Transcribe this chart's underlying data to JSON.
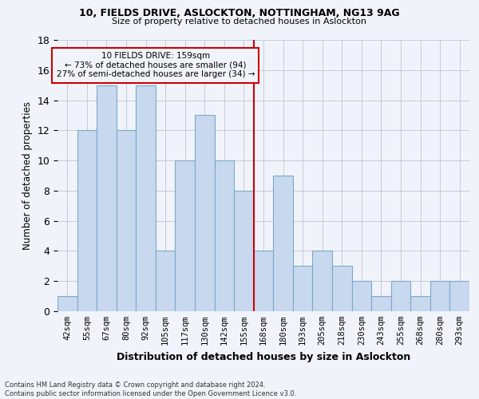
{
  "title1": "10, FIELDS DRIVE, ASLOCKTON, NOTTINGHAM, NG13 9AG",
  "title2": "Size of property relative to detached houses in Aslockton",
  "xlabel": "Distribution of detached houses by size in Aslockton",
  "ylabel": "Number of detached properties",
  "categories": [
    "42sqm",
    "55sqm",
    "67sqm",
    "80sqm",
    "92sqm",
    "105sqm",
    "117sqm",
    "130sqm",
    "142sqm",
    "155sqm",
    "168sqm",
    "180sqm",
    "193sqm",
    "205sqm",
    "218sqm",
    "230sqm",
    "243sqm",
    "255sqm",
    "268sqm",
    "280sqm",
    "293sqm"
  ],
  "values": [
    1,
    12,
    15,
    12,
    15,
    4,
    10,
    13,
    10,
    8,
    4,
    9,
    3,
    4,
    3,
    2,
    1,
    2,
    1,
    2,
    2
  ],
  "bar_color": "#c8d8ee",
  "bar_edge_color": "#7aaac8",
  "vline_color": "#cc0000",
  "annotation_text": "10 FIELDS DRIVE: 159sqm\n← 73% of detached houses are smaller (94)\n27% of semi-detached houses are larger (34) →",
  "annotation_box_color": "#cc0000",
  "ylim": [
    0,
    18
  ],
  "yticks": [
    0,
    2,
    4,
    6,
    8,
    10,
    12,
    14,
    16,
    18
  ],
  "footer": "Contains HM Land Registry data © Crown copyright and database right 2024.\nContains public sector information licensed under the Open Government Licence v3.0.",
  "bg_color": "#f0f4fa",
  "grid_color": "#c8c8d8"
}
